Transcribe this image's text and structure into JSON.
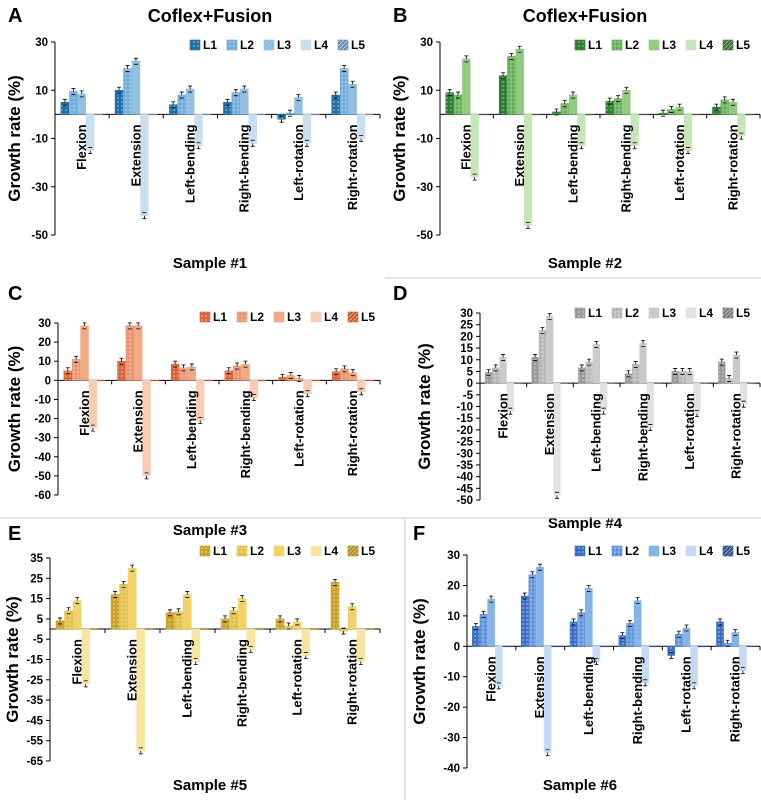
{
  "figure": {
    "series_names": [
      "L1",
      "L2",
      "L3",
      "L4",
      "L5"
    ],
    "categories": [
      "Flexion",
      "Extension",
      "Left-bending",
      "Right-bending",
      "Left-rotation",
      "Right-rotation"
    ],
    "ylabel": "Growth rate (%)"
  },
  "chart_data": [
    {
      "type": "bar",
      "letter": "A",
      "title": "Coflex+Fusion",
      "xlabel": "Sample #1",
      "ylabel": "Growth rate (%)",
      "ylim": [
        -50,
        30
      ],
      "yticks": [
        30,
        10,
        -10,
        -30,
        -50
      ],
      "colors": [
        "#1f6fa8",
        "#6aa8d8",
        "#8dbde0",
        "#c9dff0",
        "#6b8fb5"
      ],
      "categories": [
        "Flexion",
        "Extension",
        "Left-bending",
        "Right-bending",
        "Left-rotation",
        "Right-rotation"
      ],
      "series": [
        {
          "name": "L1",
          "values": [
            5,
            10,
            4,
            5,
            -2,
            8
          ]
        },
        {
          "name": "L2",
          "values": [
            9.5,
            19,
            8,
            9,
            0.5,
            19
          ]
        },
        {
          "name": "L3",
          "values": [
            8.5,
            22,
            10.5,
            10.5,
            7,
            12.5
          ]
        },
        {
          "name": "L4",
          "values": [
            -15,
            -42,
            -13,
            -12,
            -12,
            -10
          ]
        },
        {
          "name": "L5",
          "values": [
            0,
            0,
            0,
            0,
            0,
            0
          ]
        }
      ]
    },
    {
      "type": "bar",
      "letter": "B",
      "title": "Coflex+Fusion",
      "xlabel": "Sample #2",
      "ylabel": "Growth rate (%)",
      "ylim": [
        -50,
        30
      ],
      "yticks": [
        30,
        10,
        -10,
        -30,
        -50
      ],
      "colors": [
        "#2e7d32",
        "#5fae4f",
        "#8cc97a",
        "#c6e5b8",
        "#3b6b30"
      ],
      "categories": [
        "Flexion",
        "Extension",
        "Left-bending",
        "Right-bending",
        "Left-rotation",
        "Right-rotation"
      ],
      "series": [
        {
          "name": "L1",
          "values": [
            9,
            16,
            1,
            5.5,
            0.5,
            3
          ]
        },
        {
          "name": "L2",
          "values": [
            8,
            24,
            4.5,
            6.5,
            2,
            6
          ]
        },
        {
          "name": "L3",
          "values": [
            23,
            27,
            8,
            10,
            3,
            5
          ]
        },
        {
          "name": "L4",
          "values": [
            -26,
            -46,
            -13,
            -13,
            -15,
            -9
          ]
        },
        {
          "name": "L5",
          "values": [
            0,
            0,
            0,
            0,
            0,
            0
          ]
        }
      ]
    },
    {
      "type": "bar",
      "letter": "C",
      "title": "",
      "xlabel": "Sample #3",
      "ylabel": "Growth rate (%)",
      "ylim": [
        -60,
        30
      ],
      "yticks": [
        30,
        20,
        10,
        0,
        -10,
        -20,
        -30,
        -40,
        -50,
        -60
      ],
      "colors": [
        "#d9663a",
        "#e8906a",
        "#f0a57f",
        "#f7cdb5",
        "#c85a2c"
      ],
      "categories": [
        "Flexion",
        "Extension",
        "Left-bending",
        "Right-bending",
        "Left-rotation",
        "Right-rotation"
      ],
      "series": [
        {
          "name": "L1",
          "values": [
            5,
            10,
            8.5,
            5,
            1.5,
            4.5
          ]
        },
        {
          "name": "L2",
          "values": [
            11,
            28.5,
            6.5,
            7.5,
            2.5,
            6
          ]
        },
        {
          "name": "L3",
          "values": [
            28.5,
            28.5,
            7,
            8.5,
            1,
            4
          ]
        },
        {
          "name": "L4",
          "values": [
            -25,
            -50,
            -21,
            -9,
            -7,
            -6
          ]
        },
        {
          "name": "L5",
          "values": [
            0,
            0,
            0,
            0,
            0,
            0
          ]
        }
      ]
    },
    {
      "type": "bar",
      "letter": "D",
      "title": "",
      "xlabel": "Sample #4",
      "ylabel": "Growth rate (%)",
      "ylim": [
        -50,
        30
      ],
      "yticks": [
        30,
        25,
        20,
        15,
        10,
        5,
        0,
        -5,
        -10,
        -15,
        -20,
        -25,
        -30,
        -35,
        -40,
        -45,
        -50
      ],
      "colors": [
        "#9a9a9a",
        "#b4b4b4",
        "#c8c8c8",
        "#e2e2e2",
        "#7a7a7a"
      ],
      "categories": [
        "Flexion",
        "Extension",
        "Left-bending",
        "Right-bending",
        "Left-rotation",
        "Right-rotation"
      ],
      "series": [
        {
          "name": "L1",
          "values": [
            4.5,
            11,
            6.5,
            4,
            5,
            9
          ]
        },
        {
          "name": "L2",
          "values": [
            6.5,
            22.5,
            9,
            8,
            5,
            2
          ]
        },
        {
          "name": "L3",
          "values": [
            11,
            28.5,
            16.5,
            17,
            5,
            12
          ]
        },
        {
          "name": "L4",
          "values": [
            -12,
            -48,
            -12,
            -19,
            -13,
            -9
          ]
        },
        {
          "name": "L5",
          "values": [
            0,
            0,
            0,
            0,
            0,
            0
          ]
        }
      ]
    },
    {
      "type": "bar",
      "letter": "E",
      "title": "",
      "xlabel": "Sample #5",
      "ylabel": "Growth rate (%)",
      "ylim": [
        -65,
        35
      ],
      "yticks": [
        35,
        25,
        15,
        5,
        -5,
        -15,
        -25,
        -35,
        -45,
        -55,
        -65
      ],
      "colors": [
        "#c9a227",
        "#e0bd3e",
        "#efd060",
        "#f8e6a0",
        "#b08d1c"
      ],
      "categories": [
        "Flexion",
        "Extension",
        "Left-bending",
        "Right-bending",
        "Left-rotation",
        "Right-rotation"
      ],
      "series": [
        {
          "name": "L1",
          "values": [
            4,
            17,
            8,
            5,
            5,
            23
          ]
        },
        {
          "name": "L2",
          "values": [
            9,
            22,
            8.5,
            9,
            1.5,
            -1
          ]
        },
        {
          "name": "L3",
          "values": [
            14,
            30,
            17,
            15,
            3.5,
            11
          ]
        },
        {
          "name": "L4",
          "values": [
            -27,
            -60,
            -16,
            -10,
            -13,
            -16
          ]
        },
        {
          "name": "L5",
          "values": [
            0,
            0,
            0,
            0,
            0,
            0
          ]
        }
      ]
    },
    {
      "type": "bar",
      "letter": "F",
      "title": "",
      "xlabel": "Sample #6",
      "ylabel": "Growth rate (%)",
      "ylim": [
        -40,
        30
      ],
      "yticks": [
        30,
        20,
        10,
        0,
        -10,
        -20,
        -30,
        -40
      ],
      "colors": [
        "#3a6fc4",
        "#5a8fd8",
        "#7fb0e8",
        "#c5dbf5",
        "#2a4f8f"
      ],
      "categories": [
        "Flexion",
        "Extension",
        "Left-bending",
        "Right-bending",
        "Left-rotation",
        "Right-rotation"
      ],
      "series": [
        {
          "name": "L1",
          "values": [
            6.5,
            16.5,
            8,
            3.5,
            -3,
            8
          ]
        },
        {
          "name": "L2",
          "values": [
            10.5,
            23.5,
            11,
            7.5,
            4,
            1
          ]
        },
        {
          "name": "L3",
          "values": [
            15.5,
            26,
            19,
            15,
            6,
            4.5
          ]
        },
        {
          "name": "L4",
          "values": [
            -13,
            -35,
            -5,
            -12,
            -13,
            -8
          ]
        },
        {
          "name": "L5",
          "values": [
            0,
            0,
            0,
            0,
            0,
            0
          ]
        }
      ]
    }
  ]
}
